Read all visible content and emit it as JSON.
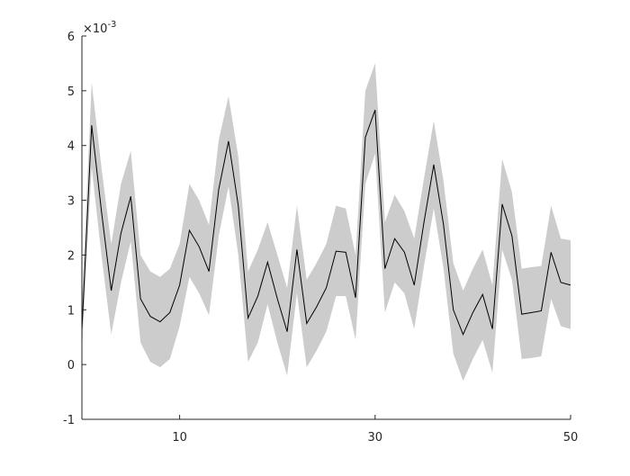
{
  "chart_data": {
    "type": "line",
    "y_multiplier": {
      "base": "×10",
      "exponent": "-3"
    },
    "x": [
      0,
      1,
      2,
      3,
      4,
      5,
      6,
      7,
      8,
      9,
      10,
      11,
      12,
      13,
      14,
      15,
      16,
      17,
      18,
      19,
      20,
      21,
      22,
      23,
      24,
      25,
      26,
      27,
      28,
      29,
      30,
      31,
      32,
      33,
      34,
      35,
      36,
      37,
      38,
      39,
      40,
      41,
      42,
      43,
      44,
      45,
      46,
      47,
      48,
      49,
      50
    ],
    "line": {
      "color": "#000000",
      "values": [
        0.63,
        4.37,
        2.8,
        1.35,
        2.4,
        3.07,
        1.2,
        0.88,
        0.78,
        0.95,
        1.45,
        2.45,
        2.15,
        1.7,
        3.2,
        4.08,
        2.9,
        0.85,
        1.25,
        1.87,
        1.2,
        0.6,
        2.1,
        0.75,
        1.05,
        1.4,
        2.07,
        2.05,
        1.22,
        4.15,
        4.65,
        1.75,
        2.3,
        2.05,
        1.45,
        2.6,
        3.65,
        2.55,
        1.0,
        0.55,
        0.95,
        1.28,
        0.65,
        2.93,
        2.35,
        0.92,
        0.95,
        0.98,
        2.05,
        1.5,
        1.45
      ]
    },
    "band": {
      "color": "#cccccc",
      "upper": [
        1.1,
        5.15,
        3.6,
        2.2,
        3.3,
        3.9,
        2.0,
        1.7,
        1.6,
        1.75,
        2.2,
        3.3,
        3.0,
        2.55,
        4.1,
        4.9,
        3.8,
        1.7,
        2.1,
        2.6,
        2.0,
        1.4,
        2.9,
        1.55,
        1.85,
        2.2,
        2.9,
        2.85,
        2.0,
        5.0,
        5.5,
        2.6,
        3.1,
        2.8,
        2.3,
        3.4,
        4.45,
        3.35,
        1.85,
        1.35,
        1.75,
        2.1,
        1.45,
        3.75,
        3.15,
        1.75,
        1.78,
        1.8,
        2.9,
        2.3,
        2.27
      ],
      "lower": [
        0.25,
        3.6,
        2.0,
        0.55,
        1.5,
        2.25,
        0.4,
        0.05,
        -0.05,
        0.1,
        0.7,
        1.6,
        1.3,
        0.9,
        2.35,
        3.25,
        2.0,
        0.05,
        0.4,
        1.1,
        0.4,
        -0.2,
        1.3,
        -0.05,
        0.25,
        0.6,
        1.25,
        1.25,
        0.45,
        3.3,
        3.85,
        0.95,
        1.5,
        1.3,
        0.65,
        1.8,
        2.85,
        1.75,
        0.2,
        -0.3,
        0.1,
        0.45,
        -0.15,
        2.1,
        1.55,
        0.1,
        0.12,
        0.15,
        1.2,
        0.7,
        0.65
      ]
    },
    "xlim": [
      0,
      50
    ],
    "xticks": [
      10,
      30,
      50
    ],
    "ylim": [
      -1,
      6
    ],
    "yticks": [
      -1,
      0,
      1,
      2,
      3,
      4,
      5,
      6
    ]
  }
}
